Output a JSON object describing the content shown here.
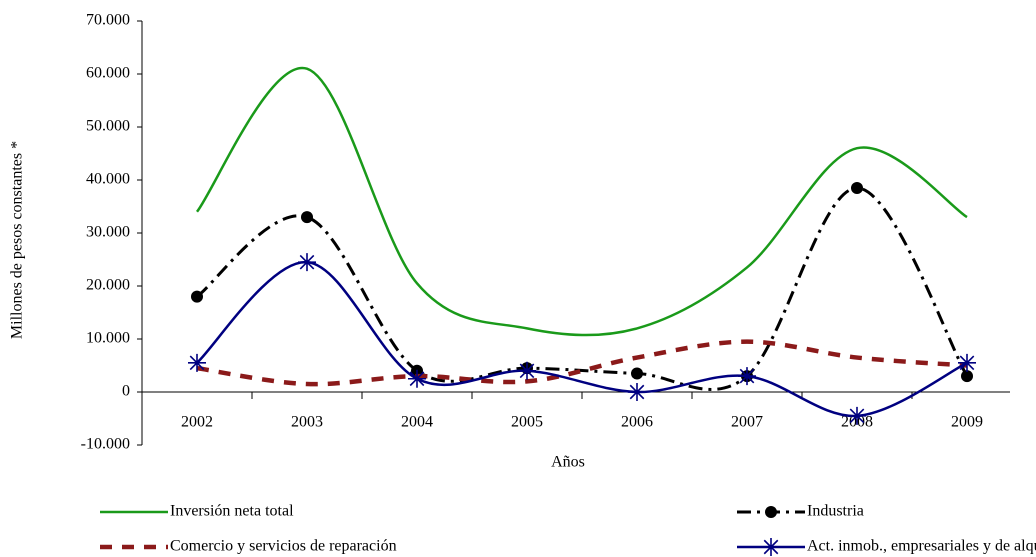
{
  "chart_data": {
    "type": "line",
    "x_label": "Años",
    "y_label": "Millones de pesos constantes *",
    "categories": [
      "2002",
      "2003",
      "2004",
      "2005",
      "2006",
      "2007",
      "2008",
      "2009"
    ],
    "ylim": [
      -10000,
      70000
    ],
    "yticks": [
      {
        "value": -10000,
        "label": "-10.000"
      },
      0,
      {
        "value": 10000,
        "label": "10.000"
      },
      {
        "value": 20000,
        "label": "20.000"
      },
      {
        "value": 30000,
        "label": "30.000"
      },
      {
        "value": 40000,
        "label": "40.000"
      },
      {
        "value": 50000,
        "label": "50.000"
      },
      {
        "value": 60000,
        "label": "60.000"
      },
      {
        "value": 70000,
        "label": "70.000"
      }
    ],
    "smooth": true,
    "series": [
      {
        "name": "Inversión neta total",
        "color": "#1a9a1a",
        "line_style": "solid",
        "values": [
          34000,
          61000,
          20500,
          12000,
          12000,
          23500,
          46000,
          33000
        ]
      },
      {
        "name": "Industria",
        "color": "#000000",
        "line_style": "dash-dot",
        "marker": "circle",
        "values": [
          18000,
          33000,
          4000,
          4500,
          3500,
          3000,
          38500,
          3000
        ]
      },
      {
        "name": "Comercio y servicios de reparación",
        "color": "#8b1a1a",
        "line_style": "dash",
        "values": [
          4500,
          1500,
          3000,
          2000,
          6500,
          9500,
          6500,
          5000
        ]
      },
      {
        "name": "Act. inmob., empresariales y de alquiler",
        "color": "#000080",
        "line_style": "solid",
        "marker": "asterisk",
        "values": [
          5500,
          24500,
          2500,
          4000,
          0,
          3000,
          -4500,
          5500
        ]
      }
    ]
  }
}
